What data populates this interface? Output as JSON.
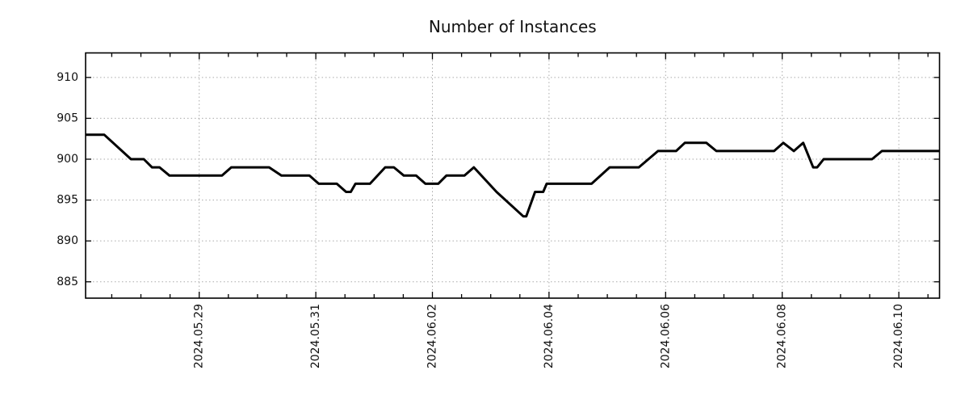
{
  "chart_data": {
    "type": "line",
    "title": "Number of Instances",
    "xlabel": "",
    "ylabel": "",
    "legend": "none",
    "grid": "dotted major gridlines, both axes",
    "background_color": "#ffffff",
    "line_color": "#000000",
    "grid_color": "#aaaaaa",
    "axis_color": "#000000",
    "text_color": "#111111",
    "ylim": [
      883,
      913
    ],
    "y_ticks": [
      885,
      890,
      895,
      900,
      905,
      910
    ],
    "x_unit": "days since 2024-05-27 00:00",
    "x_range_days": [
      0.051,
      14.7
    ],
    "x_minor_tick_step_days": 0.5,
    "x_major_ticks": [
      {
        "d": 2,
        "label": "2024.05.29"
      },
      {
        "d": 4,
        "label": "2024.05.31"
      },
      {
        "d": 6,
        "label": "2024.06.02"
      },
      {
        "d": 8,
        "label": "2024.06.04"
      },
      {
        "d": 10,
        "label": "2024.06.06"
      },
      {
        "d": 12,
        "label": "2024.06.08"
      },
      {
        "d": 14,
        "label": "2024.06.10"
      }
    ],
    "series": [
      {
        "name": "instances",
        "points": [
          [
            0.051,
            903
          ],
          [
            0.37,
            903
          ],
          [
            0.83,
            900
          ],
          [
            1.05,
            900
          ],
          [
            1.19,
            899
          ],
          [
            1.32,
            899
          ],
          [
            1.49,
            898
          ],
          [
            2.39,
            898
          ],
          [
            2.55,
            899
          ],
          [
            3.2,
            899
          ],
          [
            3.41,
            898
          ],
          [
            3.89,
            898
          ],
          [
            4.05,
            897
          ],
          [
            4.36,
            897
          ],
          [
            4.52,
            896
          ],
          [
            4.6,
            896
          ],
          [
            4.68,
            897
          ],
          [
            4.93,
            897
          ],
          [
            5.19,
            899
          ],
          [
            5.34,
            899
          ],
          [
            5.51,
            898
          ],
          [
            5.72,
            898
          ],
          [
            5.88,
            897
          ],
          [
            6.1,
            897
          ],
          [
            6.24,
            898
          ],
          [
            6.55,
            898
          ],
          [
            6.71,
            899
          ],
          [
            7.1,
            896
          ],
          [
            7.56,
            893
          ],
          [
            7.61,
            893
          ],
          [
            7.76,
            896
          ],
          [
            7.9,
            896
          ],
          [
            7.96,
            897
          ],
          [
            8.73,
            897
          ],
          [
            9.04,
            899
          ],
          [
            9.54,
            899
          ],
          [
            9.87,
            901
          ],
          [
            10.18,
            901
          ],
          [
            10.33,
            902
          ],
          [
            10.7,
            902
          ],
          [
            10.87,
            901
          ],
          [
            11.86,
            901
          ],
          [
            12.02,
            902
          ],
          [
            12.2,
            901
          ],
          [
            12.36,
            902
          ],
          [
            12.53,
            899
          ],
          [
            12.6,
            899
          ],
          [
            12.71,
            900
          ],
          [
            13.54,
            900
          ],
          [
            13.71,
            901
          ],
          [
            14.7,
            901
          ]
        ]
      }
    ]
  }
}
